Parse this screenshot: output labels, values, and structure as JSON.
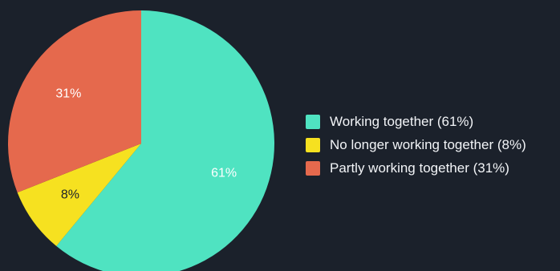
{
  "chart_data": {
    "type": "pie",
    "title": "",
    "slices": [
      {
        "label": "Working together (61%)",
        "value": 61,
        "data_label": "61%",
        "color": "#4fe3c1"
      },
      {
        "label": "No longer working together (8%)",
        "value": 8,
        "data_label": "8%",
        "color": "#f6e120"
      },
      {
        "label": "Partly working together (31%)",
        "value": 31,
        "data_label": "31%",
        "color": "#e5694d"
      }
    ],
    "start_angle": "12 o'clock",
    "direction": "clockwise",
    "legend": "right"
  },
  "colors": {
    "background": "#1b212b",
    "legend_text": "#f2f4f7",
    "label_light": "#ffffff",
    "label_dark": "#1b212b"
  }
}
